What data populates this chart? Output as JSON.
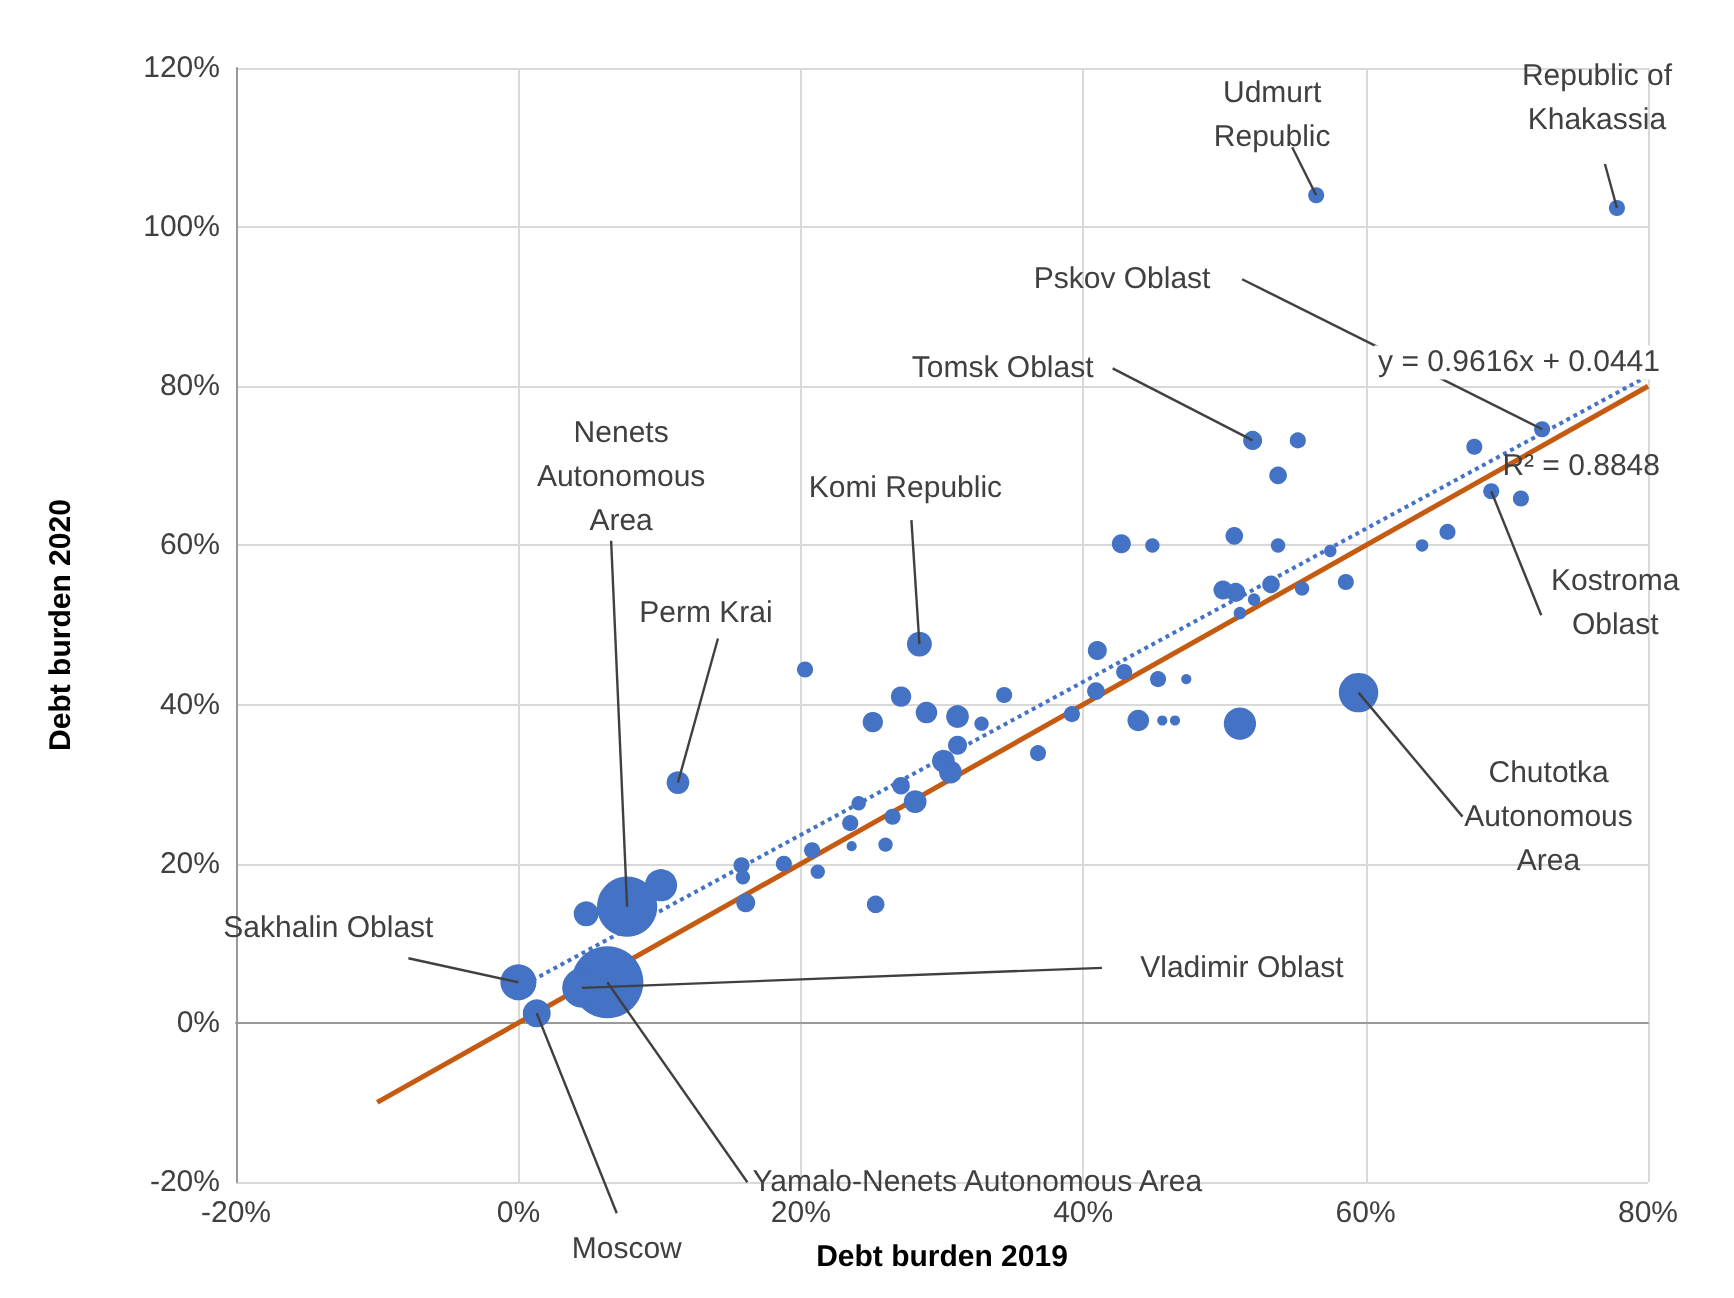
{
  "chart_data": {
    "type": "bubble",
    "xlabel": "Debt burden 2019",
    "ylabel": "Debt burden 2020",
    "xlim": [
      -20,
      80
    ],
    "xticks": [
      {
        "value": -20,
        "label": "-20%"
      },
      {
        "value": 0,
        "label": "0%"
      },
      {
        "value": 20,
        "label": "20%"
      },
      {
        "value": 40,
        "label": "40%"
      },
      {
        "value": 60,
        "label": "60%"
      },
      {
        "value": 80,
        "label": "80%"
      }
    ],
    "ylim": [
      -20,
      120
    ],
    "yticks": [
      {
        "value": -20,
        "label": "-20%"
      },
      {
        "value": 0,
        "label": "0%"
      },
      {
        "value": 20,
        "label": "20%"
      },
      {
        "value": 40,
        "label": "40%"
      },
      {
        "value": 60,
        "label": "60%"
      },
      {
        "value": 80,
        "label": "80%"
      },
      {
        "value": 100,
        "label": "100%"
      },
      {
        "value": 120,
        "label": "120%"
      }
    ],
    "grid": true,
    "series": [
      {
        "type": "bubble",
        "color": "#4472c4",
        "x": [
          56.5,
          77.8,
          72.5,
          52,
          55.2,
          53.8,
          67.7,
          68.9,
          71,
          42.7,
          44.9,
          50.7,
          53.8,
          64,
          65.8,
          49.9,
          50.8,
          53.3,
          55.5,
          58.6,
          52.1,
          51.1,
          57.5,
          28.4,
          20.3,
          27.1,
          28.9,
          31.1,
          25.1,
          34.4,
          32.8,
          31.1,
          30.1,
          30.6,
          36.8,
          39.2,
          41,
          42.9,
          40.9,
          45.3,
          47.3,
          43.9,
          45.6,
          46.5,
          51.1,
          59.5,
          27.1,
          28.1,
          24.1,
          11.3,
          7.7,
          10.1,
          4.8,
          6.3,
          4.5,
          0,
          1.3,
          15.8,
          15.9,
          16.1,
          18.8,
          20.8,
          21.2,
          23.6,
          25.3,
          26,
          26.5,
          23.5
        ],
        "values": [
          104,
          102.4,
          74.6,
          73.2,
          73.2,
          68.8,
          72.4,
          66.8,
          65.9,
          60.2,
          60,
          61.2,
          60,
          60,
          61.7,
          54.4,
          54.1,
          55.1,
          54.6,
          55.4,
          53.2,
          51.5,
          59.3,
          47.6,
          44.4,
          41,
          39,
          38.5,
          37.8,
          41.2,
          37.6,
          34.9,
          32.9,
          31.5,
          33.9,
          38.8,
          46.8,
          44.1,
          41.7,
          43.2,
          43.2,
          38,
          38,
          38,
          37.6,
          41.5,
          29.8,
          27.8,
          27.6,
          30.2,
          14.6,
          17.3,
          13.7,
          5.1,
          4.4,
          5.1,
          1.2,
          19.8,
          18.3,
          15.1,
          20,
          21.7,
          19,
          22.2,
          14.9,
          22.4,
          25.9,
          25.1
        ],
        "sizes": [
          0.05,
          0.05,
          0.05,
          0.07,
          0.05,
          0.06,
          0.05,
          0.05,
          0.05,
          0.07,
          0.04,
          0.06,
          0.04,
          0.03,
          0.05,
          0.07,
          0.07,
          0.06,
          0.04,
          0.05,
          0.03,
          0.03,
          0.03,
          0.12,
          0.05,
          0.08,
          0.09,
          0.1,
          0.08,
          0.05,
          0.04,
          0.07,
          0.1,
          0.1,
          0.05,
          0.05,
          0.07,
          0.05,
          0.06,
          0.05,
          0.02,
          0.09,
          0.02,
          0.02,
          0.2,
          0.3,
          0.06,
          0.1,
          0.04,
          0.1,
          0.7,
          0.2,
          0.12,
          1,
          0.3,
          0.25,
          0.15,
          0.05,
          0.04,
          0.07,
          0.05,
          0.05,
          0.04,
          0.02,
          0.06,
          0.04,
          0.05,
          0.05
        ]
      },
      {
        "type": "line",
        "color": "#4472c4",
        "line_style": "dotted",
        "x": [
          0,
          80
        ],
        "values": [
          4.4,
          81.3
        ]
      },
      {
        "type": "line",
        "color": "#c55a11",
        "line_style": "solid",
        "x": [
          -10,
          80
        ],
        "values": [
          -10,
          80
        ]
      }
    ],
    "annotations": [
      {
        "text": "Udmurt\nRepublic",
        "x": 56.5,
        "y": 104
      },
      {
        "text": "Republic of\nKhakassia",
        "x": 77.8,
        "y": 102.4
      },
      {
        "text": "Pskov Oblast",
        "x": 72.5,
        "y": 74.6
      },
      {
        "text": "Tomsk Oblast",
        "x": 52,
        "y": 73.2
      },
      {
        "text": "Komi Republic",
        "x": 28.4,
        "y": 47.6
      },
      {
        "text": "Perm Krai",
        "x": 11.3,
        "y": 30.2
      },
      {
        "text": "Nenets\nAutonomous\nArea",
        "x": 7.7,
        "y": 14.6
      },
      {
        "text": "Sakhalin Oblast",
        "x": 0,
        "y": 5.1
      },
      {
        "text": "Vladimir Oblast",
        "x": 4.5,
        "y": 4.4
      },
      {
        "text": "Yamalo-Nenets Autonomous Area",
        "x": 6.3,
        "y": 5.1
      },
      {
        "text": "Moscow",
        "x": 1.3,
        "y": 1.2
      },
      {
        "text": "Kostroma\nOblast",
        "x": 68.9,
        "y": 66.8
      },
      {
        "text": "Chutotka\nAutonomous\nArea",
        "x": 59.5,
        "y": 41.5
      },
      "y = 0.9616x + 0.0441",
      "R² = 0.8848"
    ]
  }
}
